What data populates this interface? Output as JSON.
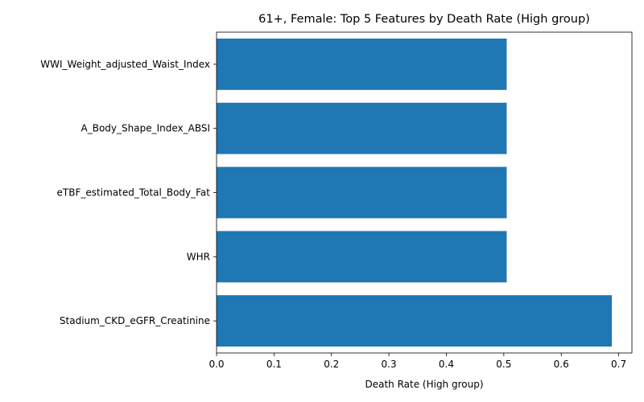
{
  "chart_data": {
    "type": "bar",
    "orientation": "horizontal",
    "title": "61+, Female: Top 5 Features by Death Rate (High group)",
    "xlabel": "Death Rate (High group)",
    "ylabel": "",
    "categories": [
      "WWI_Weight_adjusted_Waist_Index",
      "A_Body_Shape_Index_ABSI",
      "eTBF_estimated_Total_Body_Fat",
      "WHR",
      "Stadium_CKD_eGFR_Creatinine"
    ],
    "values": [
      0.505,
      0.505,
      0.505,
      0.505,
      0.688
    ],
    "xlim": [
      0,
      0.723
    ],
    "xticks": [
      "0.0",
      "0.1",
      "0.2",
      "0.3",
      "0.4",
      "0.5",
      "0.6",
      "0.7"
    ],
    "grid": false,
    "bar_color": "#1f77b4"
  }
}
